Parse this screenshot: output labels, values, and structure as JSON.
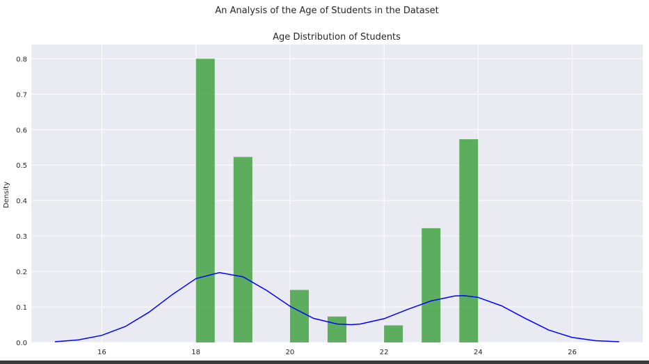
{
  "chart_data": {
    "type": "bar",
    "suptitle": "An Analysis of the Age of Students in the Dataset",
    "title": "Age Distribution of Students",
    "xlabel": "",
    "ylabel": "Density",
    "xlim": [
      14.5,
      27.5
    ],
    "ylim": [
      0,
      0.84
    ],
    "xticks": [
      16,
      18,
      20,
      22,
      24,
      26
    ],
    "yticks": [
      0.0,
      0.1,
      0.2,
      0.3,
      0.4,
      0.5,
      0.6,
      0.7,
      0.8
    ],
    "xtick_labels": [
      "16",
      "18",
      "20",
      "22",
      "24",
      "26"
    ],
    "ytick_labels": [
      "0.0",
      "0.1",
      "0.2",
      "0.3",
      "0.4",
      "0.5",
      "0.6",
      "0.7",
      "0.8"
    ],
    "grid": true,
    "bar_color": "#4ca64c",
    "curve_color": "#0000ff",
    "background_color": "#eaeaf2",
    "bars": [
      {
        "x0": 18.0,
        "x1": 18.4,
        "value": 0.8
      },
      {
        "x0": 18.8,
        "x1": 19.2,
        "value": 0.523
      },
      {
        "x0": 20.0,
        "x1": 20.4,
        "value": 0.148
      },
      {
        "x0": 20.8,
        "x1": 21.2,
        "value": 0.073
      },
      {
        "x0": 22.0,
        "x1": 22.4,
        "value": 0.048
      },
      {
        "x0": 22.8,
        "x1": 23.2,
        "value": 0.322
      },
      {
        "x0": 23.6,
        "x1": 24.0,
        "value": 0.573
      }
    ],
    "kde": {
      "x": [
        15.0,
        15.5,
        16.0,
        16.5,
        17.0,
        17.5,
        18.0,
        18.5,
        19.0,
        19.5,
        20.0,
        20.5,
        21.0,
        21.3,
        21.5,
        22.0,
        22.5,
        23.0,
        23.5,
        23.7,
        24.0,
        24.5,
        25.0,
        25.5,
        26.0,
        26.5,
        27.0
      ],
      "y": [
        0.002,
        0.007,
        0.02,
        0.045,
        0.085,
        0.135,
        0.18,
        0.197,
        0.185,
        0.147,
        0.102,
        0.068,
        0.052,
        0.05,
        0.052,
        0.067,
        0.093,
        0.117,
        0.131,
        0.132,
        0.127,
        0.103,
        0.068,
        0.035,
        0.014,
        0.005,
        0.002
      ]
    }
  }
}
